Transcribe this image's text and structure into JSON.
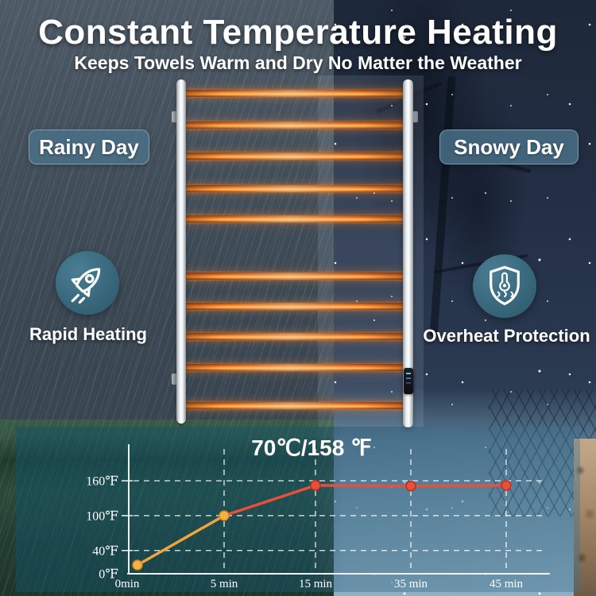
{
  "header": {
    "title": "Constant Temperature Heating",
    "subtitle": "Keeps Towels Warm and Dry No Matter the Weather"
  },
  "scene": {
    "rainy_badge": "Rainy Day",
    "snowy_badge": "Snowy Day",
    "features": {
      "left": {
        "icon": "rocket-icon",
        "label": "Rapid Heating"
      },
      "right": {
        "icon": "shield-overheat-icon",
        "label": "Overheat Protection"
      }
    },
    "device": "heated-towel-rail",
    "bar_count": 10
  },
  "colors": {
    "heat_warm": "#f2a33c",
    "heat_hot": "#e8503a",
    "badge_teal": "#4a7289",
    "icon_circle_teal": "#3a6f85",
    "bar_orange": "#ff8f2e",
    "panel_overlay_teal": "#16546a"
  },
  "chart_data": {
    "type": "line",
    "title": "70℃/158 ℉",
    "x_categories": [
      "0min",
      "5 min",
      "15 min",
      "35 min",
      "45 min"
    ],
    "x_values_min": [
      0,
      5,
      15,
      35,
      45
    ],
    "series": [
      {
        "name": "towel-rail-temperature",
        "values_F": [
          15,
          100,
          152,
          151,
          152
        ]
      }
    ],
    "y_ticks": [
      {
        "label": "0℉",
        "value": 0
      },
      {
        "label": "40℉",
        "value": 40
      },
      {
        "label": "100℉",
        "value": 100
      },
      {
        "label": "160℉",
        "value": 160
      }
    ],
    "ylim": [
      0,
      170
    ],
    "grid": "dashed-white",
    "legend": "none",
    "warm_color": "#f2a33c",
    "hot_color": "#e8503a",
    "hot_from_index": 2
  }
}
